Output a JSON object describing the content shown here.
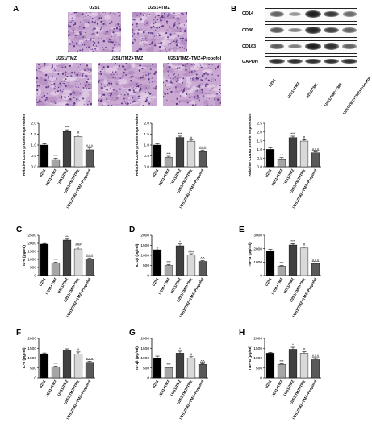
{
  "panel_letters": [
    "A",
    "B",
    "C",
    "D",
    "E",
    "F",
    "G",
    "H"
  ],
  "histology": {
    "labels": [
      "U251",
      "U251+TMZ",
      "U251/TMZ",
      "U251/TMZ+TMZ",
      "U251/TMZ+TMZ+Propofol"
    ]
  },
  "western_blot": {
    "rows": [
      "CD14",
      "CD86",
      "CD163",
      "GAPDH"
    ],
    "lanes": [
      "U251",
      "U251+TMZ",
      "U251/TMZ",
      "U251/TMZ+TMZ",
      "U251/TMZ+TMZ+Propofol"
    ],
    "band_intensity": [
      [
        0.55,
        0.25,
        0.95,
        0.8,
        0.5
      ],
      [
        0.6,
        0.35,
        0.9,
        0.75,
        0.55
      ],
      [
        0.6,
        0.4,
        0.95,
        0.85,
        0.55
      ],
      [
        0.85,
        0.85,
        0.85,
        0.85,
        0.85
      ]
    ]
  },
  "colors": {
    "U251": "#000000",
    "U251+TMZ": "#a6a6a6",
    "U251/TMZ": "#404040",
    "U251/TMZ+TMZ": "#d9d9d9",
    "U251/TMZ+TMZ+Propofol": "#595959"
  },
  "chart_data": [
    {
      "id": "A-CD14",
      "type": "bar",
      "categories": [
        "U251",
        "U251+TMZ",
        "U251/TMZ",
        "U251/TMZ+TMZ",
        "U251/TMZ+TMZ+Propofol"
      ],
      "values": [
        1.0,
        0.33,
        1.62,
        1.4,
        0.78
      ],
      "errors": [
        0.06,
        0.06,
        0.08,
        0.07,
        0.08
      ],
      "sig": [
        "",
        "***",
        "***",
        "#",
        "ΔΔΔ"
      ],
      "ylabel": "Relative CD14 protein expression",
      "ylim": [
        0,
        2.0
      ],
      "yticks": [
        0.0,
        0.5,
        1.0,
        1.5,
        2.0
      ],
      "ytick_labels": [
        "0.0",
        "0.5",
        "1.0",
        "1.5",
        "2.0"
      ]
    },
    {
      "id": "A-CD86",
      "type": "bar",
      "categories": [
        "U251",
        "U251+TMZ",
        "U251/TMZ",
        "U251/TMZ+TMZ",
        "U251/TMZ+TMZ+Propofol"
      ],
      "values": [
        1.0,
        0.43,
        1.35,
        1.18,
        0.7
      ],
      "errors": [
        0.05,
        0.05,
        0.06,
        0.05,
        0.07
      ],
      "sig": [
        "",
        "***",
        "***",
        "#",
        "ΔΔΔ"
      ],
      "ylabel": "Relative CD86 protein expression",
      "ylim": [
        0,
        2.0
      ],
      "yticks": [
        0.0,
        0.5,
        1.0,
        1.5,
        2.0
      ],
      "ytick_labels": [
        "0.0",
        "0.5",
        "1.0",
        "1.5",
        "2.0"
      ]
    },
    {
      "id": "A-CD163",
      "type": "bar",
      "categories": [
        "U251",
        "U251+TMZ",
        "U251/TMZ",
        "U251/TMZ+TMZ",
        "U251/TMZ+TMZ+Propofol"
      ],
      "values": [
        1.0,
        0.45,
        1.68,
        1.48,
        0.8
      ],
      "errors": [
        0.1,
        0.07,
        0.08,
        0.08,
        0.06
      ],
      "sig": [
        "",
        "***",
        "***",
        "#",
        "ΔΔΔ"
      ],
      "ylabel": "Relative CD163 protein expression",
      "ylim": [
        0,
        2.5
      ],
      "yticks": [
        0.0,
        0.5,
        1.0,
        1.5,
        2.0,
        2.5
      ],
      "ytick_labels": [
        "0.0",
        "0.5",
        "1.0",
        "1.5",
        "2.0",
        "2.5"
      ]
    },
    {
      "id": "C",
      "type": "bar",
      "categories": [
        "U251",
        "U251+TMZ",
        "U251/TMZ",
        "U251/TMZ+TMZ",
        "U251/TMZ+TMZ+Propofol"
      ],
      "values": [
        1950,
        780,
        2200,
        1650,
        1030
      ],
      "errors": [
        40,
        50,
        60,
        120,
        60
      ],
      "sig": [
        "",
        "***",
        "**",
        "###",
        "ΔΔΔ"
      ],
      "ylabel": "IL-6 (pg/ml)",
      "ylim": [
        0,
        2500
      ],
      "yticks": [
        0,
        500,
        1000,
        1500,
        2000,
        2500
      ],
      "ytick_labels": [
        "0",
        "500",
        "1000",
        "1500",
        "2000",
        "2500"
      ]
    },
    {
      "id": "D",
      "type": "bar",
      "categories": [
        "U251",
        "U251+TMZ",
        "U251/TMZ",
        "U251/TMZ+TMZ",
        "U251/TMZ+TMZ+Propofol"
      ],
      "values": [
        1280,
        500,
        1480,
        1020,
        700
      ],
      "errors": [
        130,
        50,
        90,
        60,
        40
      ],
      "sig": [
        "",
        "***",
        "*",
        "###",
        "ΔΔ"
      ],
      "ylabel": "IL-1β (pg/ml)",
      "ylim": [
        0,
        2000
      ],
      "yticks": [
        0,
        500,
        1000,
        1500,
        2000
      ],
      "ytick_labels": [
        "0",
        "500",
        "1000",
        "1500",
        "2000"
      ]
    },
    {
      "id": "E",
      "type": "bar",
      "categories": [
        "U251",
        "U251+TMZ",
        "U251/TMZ",
        "U251/TMZ+TMZ",
        "U251/TMZ+TMZ+Propofol"
      ],
      "values": [
        1850,
        700,
        2280,
        2050,
        880
      ],
      "errors": [
        90,
        60,
        100,
        80,
        60
      ],
      "sig": [
        "",
        "***",
        "***",
        "#",
        "ΔΔΔ"
      ],
      "ylabel": "TNF-α (pg/ml)",
      "ylim": [
        0,
        3000
      ],
      "yticks": [
        0,
        1000,
        2000,
        3000
      ],
      "ytick_labels": [
        "0",
        "1000",
        "2000",
        "3000"
      ]
    },
    {
      "id": "F",
      "type": "bar",
      "categories": [
        "U251",
        "U251+TMZ",
        "U251/TMZ",
        "U251/TMZ+TMZ",
        "U251/TMZ+TMZ+Propofol"
      ],
      "values": [
        1220,
        550,
        1400,
        1200,
        790
      ],
      "errors": [
        40,
        40,
        70,
        110,
        40
      ],
      "sig": [
        "",
        "***",
        "*",
        "#",
        "ΔΔΔ"
      ],
      "ylabel": "IL-6 (pg/ml)",
      "ylim": [
        0,
        2000
      ],
      "yticks": [
        0,
        500,
        1000,
        1500,
        2000
      ],
      "ytick_labels": [
        "0",
        "500",
        "1000",
        "1500",
        "2000"
      ]
    },
    {
      "id": "G",
      "type": "bar",
      "categories": [
        "U251",
        "U251+TMZ",
        "U251/TMZ",
        "U251/TMZ+TMZ",
        "U251/TMZ+TMZ+Propofol"
      ],
      "values": [
        1000,
        520,
        1250,
        990,
        680
      ],
      "errors": [
        100,
        40,
        100,
        80,
        40
      ],
      "sig": [
        "",
        "***",
        "*",
        "#",
        "ΔΔ"
      ],
      "ylabel": "IL-1β (pg/ml)",
      "ylim": [
        0,
        2000
      ],
      "yticks": [
        0,
        500,
        1000,
        1500,
        2000
      ],
      "ytick_labels": [
        "0",
        "500",
        "1000",
        "1500",
        "2000"
      ]
    },
    {
      "id": "H",
      "type": "bar",
      "categories": [
        "U251",
        "U251+TMZ",
        "U251/TMZ",
        "U251/TMZ+TMZ",
        "U251/TMZ+TMZ+Propofol"
      ],
      "values": [
        1250,
        680,
        1450,
        1250,
        920
      ],
      "errors": [
        40,
        30,
        100,
        70,
        60
      ],
      "sig": [
        "",
        "***",
        "*",
        "#",
        "ΔΔΔ"
      ],
      "ylabel": "TNF-α (pg/ml)",
      "ylim": [
        0,
        2000
      ],
      "yticks": [
        0,
        500,
        1000,
        1500,
        2000
      ],
      "ytick_labels": [
        "0",
        "500",
        "1000",
        "1500",
        "2000"
      ]
    }
  ]
}
